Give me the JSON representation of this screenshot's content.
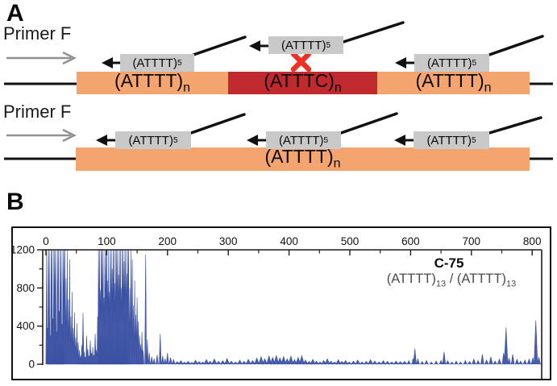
{
  "panel_a": {
    "label": "A",
    "rows": [
      {
        "primer_f_label": "Primer F",
        "segments": [
          {
            "base": "(ATTTT)",
            "sub": "n"
          },
          {
            "base": "(ATTTC)",
            "sub": "n"
          },
          {
            "base": "(ATTTT)",
            "sub": "n"
          }
        ],
        "primers": [
          {
            "base": "(ATTTT)",
            "sub": "5"
          },
          {
            "base": "(ATTTT)",
            "sub": "5"
          },
          {
            "base": "(ATTTT)",
            "sub": "5"
          }
        ]
      },
      {
        "primer_f_label": "Primer F",
        "segments": [
          {
            "base": "(ATTTT)",
            "sub": "n"
          }
        ],
        "primers": [
          {
            "base": "(ATTTT)",
            "sub": "5"
          },
          {
            "base": "(ATTTT)",
            "sub": "5"
          },
          {
            "base": "(ATTTT)",
            "sub": "5"
          }
        ]
      }
    ]
  },
  "panel_b": {
    "label": "B",
    "annotation": {
      "sample_id": "C-75",
      "allele1": "(ATTTT)",
      "allele1_sub": "13",
      "separator": " / ",
      "allele2": "(ATTTT)",
      "allele2_sub": "13"
    },
    "chart_data": {
      "type": "area",
      "title": "C-75 electropherogram",
      "x_ticks": [
        0,
        100,
        200,
        300,
        400,
        500,
        600,
        700,
        800
      ],
      "x_minor_step": 50,
      "y_ticks": [
        0,
        400,
        800,
        1200
      ],
      "y_minor_ticks": [
        200,
        600,
        1000
      ],
      "xlim": [
        0,
        816
      ],
      "ylim": [
        0,
        1200
      ],
      "grid": false,
      "legend": "none",
      "trace_color": "#3B51A3",
      "peaks": [
        [
          1,
          1200
        ],
        [
          2.5,
          380
        ],
        [
          4,
          1200
        ],
        [
          5.5,
          1200
        ],
        [
          7,
          300
        ],
        [
          8.5,
          1200
        ],
        [
          10,
          1200
        ],
        [
          11.5,
          480
        ],
        [
          13,
          1200
        ],
        [
          14.5,
          1200
        ],
        [
          16,
          1200
        ],
        [
          17.5,
          340
        ],
        [
          19,
          1200
        ],
        [
          20.5,
          1200
        ],
        [
          22,
          560
        ],
        [
          23.5,
          1200
        ],
        [
          25,
          1200
        ],
        [
          26.5,
          420
        ],
        [
          28,
          1200
        ],
        [
          29.5,
          1200
        ],
        [
          31,
          1200
        ],
        [
          33,
          900
        ],
        [
          35,
          1200
        ],
        [
          37,
          680
        ],
        [
          39,
          1100
        ],
        [
          41,
          500
        ],
        [
          43,
          760
        ],
        [
          45,
          380
        ],
        [
          47,
          540
        ],
        [
          49,
          280
        ],
        [
          51,
          430
        ],
        [
          53,
          230
        ],
        [
          55,
          150
        ],
        [
          57,
          90,
          1.5
        ],
        [
          59,
          200,
          1.5
        ],
        [
          61,
          540,
          1.5
        ],
        [
          63,
          130,
          1.5
        ],
        [
          65,
          80,
          1.5
        ],
        [
          67,
          300,
          1.5
        ],
        [
          69,
          160,
          1.5
        ],
        [
          71,
          90,
          1.5
        ],
        [
          73,
          250,
          1.5
        ],
        [
          75,
          120,
          1.5
        ],
        [
          77,
          180,
          1.5
        ],
        [
          79,
          100,
          1.5
        ],
        [
          81,
          320,
          1.5
        ],
        [
          83,
          150,
          1.5
        ],
        [
          85,
          500
        ],
        [
          86.5,
          1200
        ],
        [
          88,
          1200
        ],
        [
          89.5,
          780
        ],
        [
          91,
          1200
        ],
        [
          92.5,
          1200
        ],
        [
          94,
          1200
        ],
        [
          95.5,
          700
        ],
        [
          97,
          1200
        ],
        [
          98.5,
          1200
        ],
        [
          100,
          1200
        ],
        [
          101.5,
          880
        ],
        [
          103,
          1200
        ],
        [
          104.5,
          760
        ],
        [
          106,
          1200
        ],
        [
          107.5,
          1200
        ],
        [
          109,
          1000
        ],
        [
          110.5,
          1200
        ],
        [
          112,
          1200
        ],
        [
          113.5,
          850
        ],
        [
          115,
          1200
        ],
        [
          116.5,
          1200
        ],
        [
          118,
          1200
        ],
        [
          119.5,
          940
        ],
        [
          121,
          1200
        ],
        [
          122.5,
          1200
        ],
        [
          124,
          800
        ],
        [
          125.5,
          1200
        ],
        [
          127,
          1200
        ],
        [
          128.5,
          1080
        ],
        [
          130,
          1200
        ],
        [
          131.5,
          1200
        ],
        [
          133,
          950
        ],
        [
          134.5,
          1200
        ],
        [
          136,
          1200
        ],
        [
          138,
          800
        ],
        [
          140,
          1200
        ],
        [
          142,
          1100
        ],
        [
          144,
          620
        ],
        [
          146,
          880
        ],
        [
          148,
          520
        ],
        [
          150,
          700,
          1.3
        ],
        [
          152,
          450,
          1.3
        ],
        [
          154,
          300,
          1.3
        ],
        [
          156,
          210,
          1.3
        ],
        [
          158,
          340,
          1.3
        ],
        [
          160,
          150,
          1.3
        ],
        [
          164,
          1150,
          1.4
        ],
        [
          167,
          260,
          1.3
        ],
        [
          170,
          120,
          1.5
        ],
        [
          174,
          80,
          2
        ],
        [
          178,
          60,
          2
        ],
        [
          183,
          100,
          2
        ],
        [
          188,
          320,
          1.6
        ],
        [
          192,
          90,
          2
        ],
        [
          196,
          60,
          2
        ],
        [
          200,
          120,
          2
        ],
        [
          205,
          70,
          2.5
        ],
        [
          210,
          50,
          2.5
        ],
        [
          216,
          28,
          4
        ],
        [
          222,
          38,
          4
        ],
        [
          228,
          22,
          4
        ],
        [
          234,
          32,
          4
        ],
        [
          240,
          20,
          4
        ],
        [
          246,
          42,
          4
        ],
        [
          252,
          28,
          4
        ],
        [
          258,
          24,
          4
        ],
        [
          264,
          50,
          4
        ],
        [
          270,
          32,
          4
        ],
        [
          277,
          55,
          4
        ],
        [
          284,
          30,
          4
        ],
        [
          291,
          38,
          4
        ],
        [
          298,
          60,
          4
        ],
        [
          305,
          34,
          4
        ],
        [
          312,
          24,
          4
        ],
        [
          319,
          42,
          4
        ],
        [
          326,
          30,
          4
        ],
        [
          333,
          52,
          4
        ],
        [
          340,
          40,
          4
        ],
        [
          347,
          65,
          4
        ],
        [
          354,
          80,
          4
        ],
        [
          360,
          58,
          4
        ],
        [
          367,
          88,
          4
        ],
        [
          373,
          72,
          4
        ],
        [
          379,
          92,
          4
        ],
        [
          385,
          68,
          4
        ],
        [
          391,
          82,
          4
        ],
        [
          397,
          58,
          4
        ],
        [
          403,
          86,
          4
        ],
        [
          409,
          50,
          4
        ],
        [
          415,
          72,
          4
        ],
        [
          421,
          90,
          4
        ],
        [
          427,
          44,
          4
        ],
        [
          433,
          30,
          4
        ],
        [
          439,
          52,
          4
        ],
        [
          445,
          34,
          4
        ],
        [
          451,
          24,
          4
        ],
        [
          457,
          40,
          4
        ],
        [
          463,
          56,
          4
        ],
        [
          469,
          34,
          4
        ],
        [
          475,
          24,
          4
        ],
        [
          481,
          48,
          4
        ],
        [
          487,
          30,
          4
        ],
        [
          493,
          40,
          4
        ],
        [
          499,
          24,
          4
        ],
        [
          506,
          34,
          4
        ],
        [
          513,
          44,
          4
        ],
        [
          520,
          24,
          4
        ],
        [
          527,
          30,
          4
        ],
        [
          534,
          48,
          4
        ],
        [
          541,
          34,
          4
        ],
        [
          548,
          24,
          4
        ],
        [
          555,
          38,
          4
        ],
        [
          562,
          30,
          4
        ],
        [
          569,
          24,
          4
        ],
        [
          576,
          34,
          4
        ],
        [
          583,
          28,
          4
        ],
        [
          590,
          30,
          4
        ],
        [
          597,
          38,
          3
        ],
        [
          604,
          60,
          2
        ],
        [
          607,
          165,
          2.5
        ],
        [
          612,
          55,
          2.5
        ],
        [
          619,
          30,
          3
        ],
        [
          626,
          40,
          3
        ],
        [
          634,
          24,
          3
        ],
        [
          642,
          34,
          3
        ],
        [
          650,
          40,
          3
        ],
        [
          655,
          130,
          2.5
        ],
        [
          661,
          38,
          3
        ],
        [
          668,
          24,
          3
        ],
        [
          675,
          34,
          3
        ],
        [
          682,
          24,
          3
        ],
        [
          690,
          40,
          3
        ],
        [
          697,
          30,
          3
        ],
        [
          704,
          55,
          3
        ],
        [
          711,
          40,
          3
        ],
        [
          718,
          105,
          2.5
        ],
        [
          725,
          45,
          3
        ],
        [
          732,
          78,
          3
        ],
        [
          739,
          34,
          3
        ],
        [
          746,
          55,
          3
        ],
        [
          753,
          120,
          2.5
        ],
        [
          757,
          385,
          3
        ],
        [
          762,
          65,
          2.5
        ],
        [
          768,
          105,
          2.5
        ],
        [
          775,
          52,
          3
        ],
        [
          781,
          34,
          3
        ],
        [
          788,
          44,
          3
        ],
        [
          795,
          55,
          3
        ],
        [
          801,
          70,
          2.5
        ],
        [
          806,
          460,
          3
        ],
        [
          811,
          75,
          2.5
        ]
      ]
    }
  },
  "colors": {
    "repeat_bar": "#F4A46E",
    "interruption_bar": "#C02A2E",
    "primer_box": "#C9C9C9",
    "blocked_x": "#EE3124",
    "primer_f_arrow": "#8F9194",
    "trace": "#3B51A3"
  }
}
